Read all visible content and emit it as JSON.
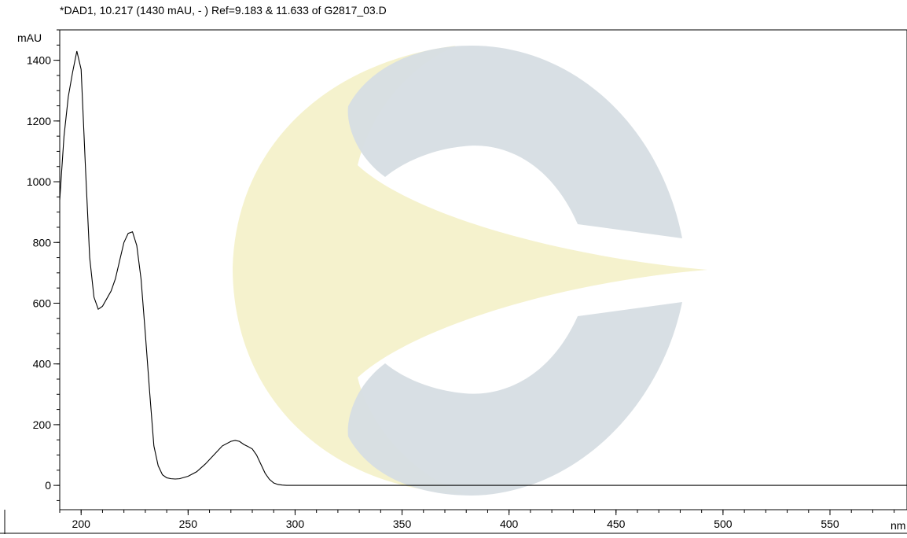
{
  "chart_data": {
    "type": "line",
    "title": "*DAD1, 10.217 (1430 mAU, - ) Ref=9.183 & 11.633 of G2817_03.D",
    "xlabel": "nm",
    "ylabel": "mAU",
    "xlim": [
      190,
      586
    ],
    "ylim": [
      -80,
      1500
    ],
    "xticks": [
      200,
      250,
      300,
      350,
      400,
      450,
      500,
      550
    ],
    "yticks": [
      0,
      200,
      400,
      600,
      800,
      1000,
      1200,
      1400
    ],
    "grid": false,
    "legend": "none",
    "colors": {
      "line": "#000000",
      "watermark_yellow": "#f4f1c8",
      "watermark_blue": "#d6dde3"
    },
    "series": [
      {
        "x": [
          190,
          192,
          194,
          196,
          198,
          200,
          202,
          204,
          206,
          208,
          210,
          212,
          214,
          216,
          218,
          220,
          222,
          224,
          226,
          228,
          230,
          232,
          234,
          236,
          238,
          240,
          242,
          244,
          246,
          250,
          254,
          258,
          262,
          266,
          270,
          272,
          274,
          276,
          278,
          280,
          282,
          284,
          286,
          288,
          290,
          292,
          294,
          296,
          300,
          350,
          400,
          450,
          500,
          550,
          586
        ],
        "y": [
          940,
          1150,
          1280,
          1360,
          1430,
          1370,
          1050,
          750,
          620,
          580,
          590,
          615,
          640,
          680,
          740,
          800,
          830,
          835,
          790,
          680,
          500,
          310,
          130,
          65,
          35,
          25,
          22,
          21,
          22,
          30,
          45,
          70,
          100,
          130,
          145,
          148,
          145,
          135,
          128,
          120,
          100,
          70,
          40,
          20,
          8,
          3,
          1,
          0,
          0,
          0,
          0,
          0,
          0,
          0,
          0
        ]
      }
    ]
  }
}
